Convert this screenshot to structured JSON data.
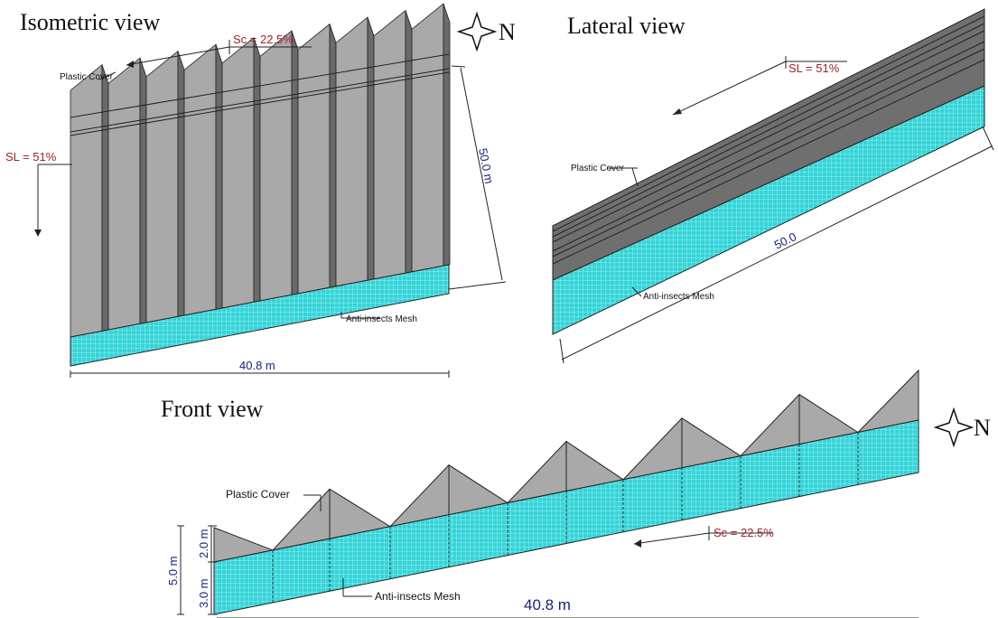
{
  "isometric": {
    "title": "Isometric view",
    "slope_cross": "Sc = 22.5%",
    "plastic_cover": "Plastic Cover",
    "slope_long": "SL = 51%",
    "length": "50.0 m",
    "mesh": "Anti-insects Mesh",
    "width": "40.8 m",
    "north": "N"
  },
  "lateral": {
    "title": "Lateral view",
    "slope_long": "SL = 51%",
    "plastic_cover": "Plastic Cover",
    "length": "50.0",
    "mesh": "Anti-insects Mesh"
  },
  "front": {
    "title": "Front view",
    "plastic_cover": "Plastic Cover",
    "slope_cross": "Sc = 22.5%",
    "height_total": "5.0 m",
    "height_roof": "2.0 m",
    "height_mesh": "3.0 m",
    "mesh": "Anti-insects Mesh",
    "width": "40.8 m",
    "north": "N"
  }
}
